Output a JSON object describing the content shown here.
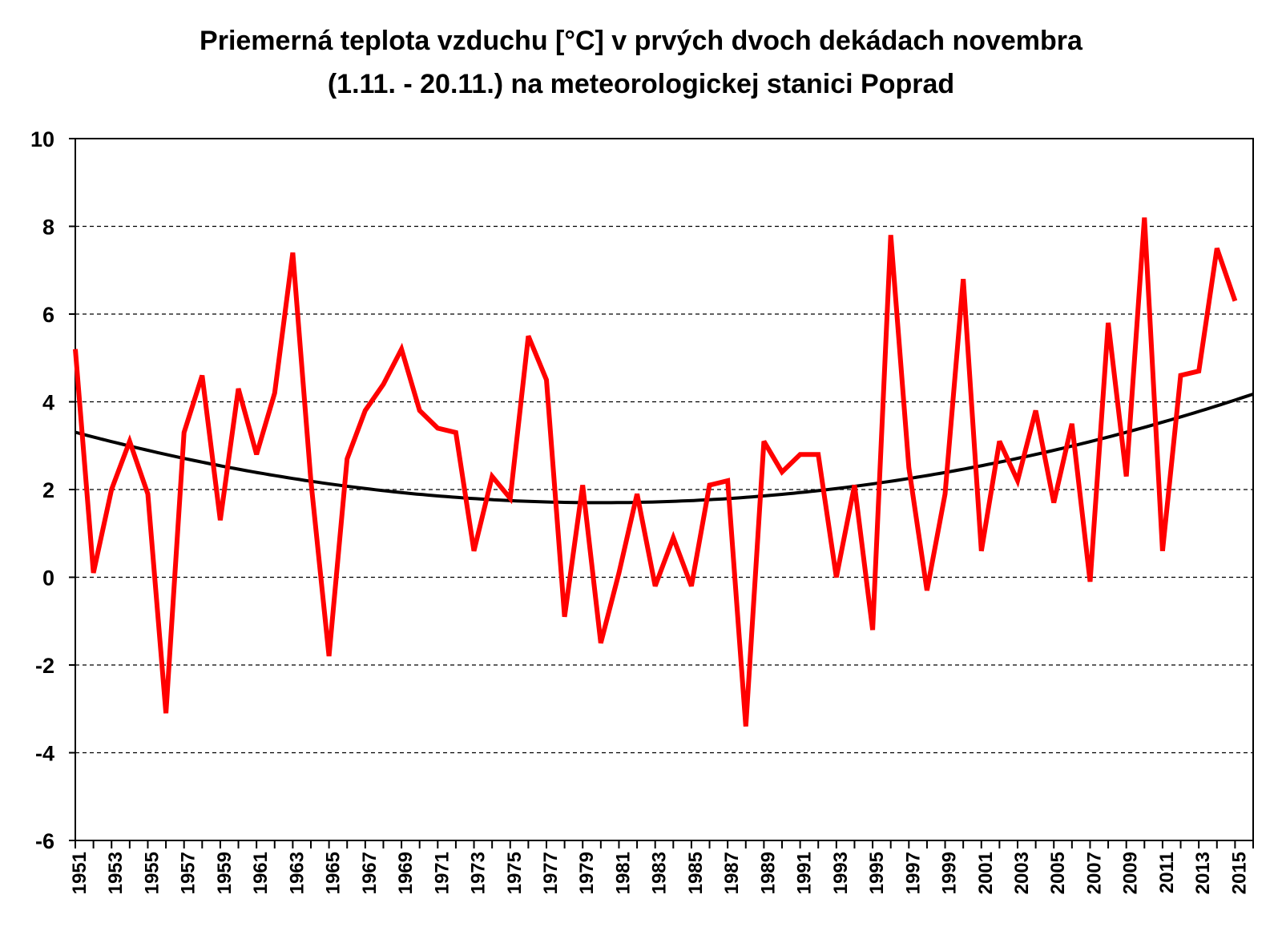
{
  "chart_data": {
    "type": "line",
    "title_line1": "Priemerná teplota vzduchu [°C] v prvých dvoch dekádach novembra",
    "title_line2": "(1.11. - 20.11.) na meteorologickej stanici Poprad",
    "xlabel": "",
    "ylabel": "",
    "ylim": [
      -6,
      10
    ],
    "yticks": [
      -6,
      -4,
      -2,
      0,
      2,
      4,
      6,
      8,
      10
    ],
    "xlim": [
      1951,
      2016
    ],
    "xtick_labels": [
      "1951",
      "1953",
      "1955",
      "1957",
      "1959",
      "1961",
      "1963",
      "1965",
      "1967",
      "1969",
      "1971",
      "1973",
      "1975",
      "1977",
      "1979",
      "1981",
      "1983",
      "1985",
      "1987",
      "1989",
      "1991",
      "1993",
      "1995",
      "1997",
      "1999",
      "2001",
      "2003",
      "2005",
      "2007",
      "2009",
      "2011",
      "2013",
      "2015"
    ],
    "grid": "horizontal dashed",
    "series": [
      {
        "name": "temperature",
        "color": "#ff0000",
        "x": [
          1951,
          1952,
          1953,
          1954,
          1955,
          1956,
          1957,
          1958,
          1959,
          1960,
          1961,
          1962,
          1963,
          1964,
          1965,
          1966,
          1967,
          1968,
          1969,
          1970,
          1971,
          1972,
          1973,
          1974,
          1975,
          1976,
          1977,
          1978,
          1979,
          1980,
          1981,
          1982,
          1983,
          1984,
          1985,
          1986,
          1987,
          1988,
          1989,
          1990,
          1991,
          1992,
          1993,
          1994,
          1995,
          1996,
          1997,
          1998,
          1999,
          2000,
          2001,
          2002,
          2003,
          2004,
          2005,
          2006,
          2007,
          2008,
          2009,
          2010,
          2011,
          2012,
          2013,
          2014,
          2015
        ],
        "values": [
          5.2,
          0.1,
          2.0,
          3.1,
          1.9,
          -3.1,
          3.3,
          4.6,
          1.3,
          4.3,
          2.8,
          4.2,
          7.4,
          2.2,
          -1.8,
          2.7,
          3.8,
          4.4,
          5.2,
          3.8,
          3.4,
          3.3,
          0.6,
          2.3,
          1.8,
          5.5,
          4.5,
          -0.9,
          2.1,
          -1.5,
          0.1,
          1.9,
          -0.2,
          0.9,
          -0.2,
          2.1,
          2.2,
          -3.4,
          3.1,
          2.4,
          2.8,
          2.8,
          0.0,
          2.1,
          -1.2,
          7.8,
          2.5,
          -0.3,
          1.9,
          6.8,
          0.6,
          3.1,
          2.2,
          3.8,
          1.7,
          3.5,
          -0.1,
          5.8,
          2.3,
          8.2,
          0.6,
          4.6,
          4.7,
          7.5,
          6.3
        ]
      },
      {
        "name": "polynomial trend",
        "color": "#000000",
        "type": "quadratic",
        "vertex_year": 1980,
        "vertex_value": 1.7,
        "coef_a": 0.00191
      }
    ]
  }
}
